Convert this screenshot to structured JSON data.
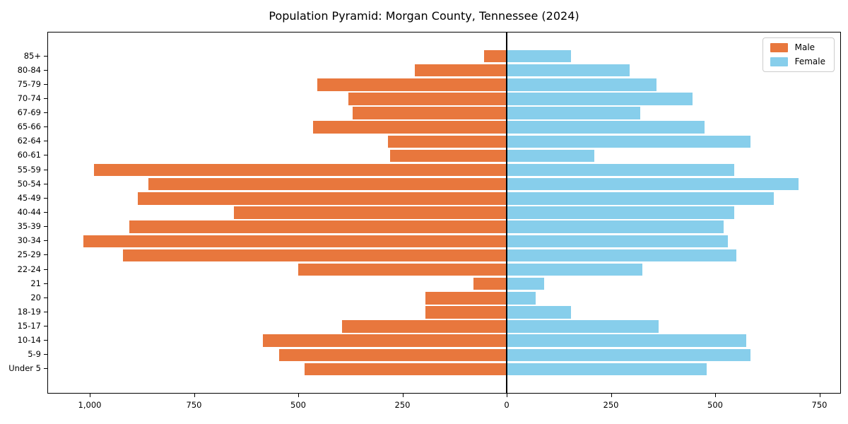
{
  "title": "Population Pyramid: Morgan County, Tennessee (2024)",
  "legend": {
    "male_label": "Male",
    "female_label": "Female"
  },
  "colors": {
    "male": "#e8773d",
    "female": "#87ceeb",
    "axis": "#000000",
    "zero_line": "#000000",
    "legend_border": "#cccccc",
    "background": "#ffffff"
  },
  "chart_data": {
    "type": "bar",
    "subtype": "population-pyramid",
    "title": "Population Pyramid: Morgan County, Tennessee (2024)",
    "xlabel": "",
    "ylabel": "",
    "grid": false,
    "legend_position": "upper right",
    "categories_top_to_bottom": [
      "85+",
      "80-84",
      "75-79",
      "70-74",
      "67-69",
      "65-66",
      "62-64",
      "60-61",
      "55-59",
      "50-54",
      "45-49",
      "40-44",
      "35-39",
      "30-34",
      "25-29",
      "22-24",
      "21",
      "20",
      "18-19",
      "15-17",
      "10-14",
      "5-9",
      "Under 5"
    ],
    "series": [
      {
        "name": "Male",
        "side": "left",
        "values": [
          55,
          220,
          455,
          380,
          370,
          465,
          285,
          280,
          990,
          860,
          885,
          655,
          905,
          1015,
          920,
          500,
          80,
          195,
          195,
          395,
          585,
          545,
          485
        ]
      },
      {
        "name": "Female",
        "side": "right",
        "values": [
          155,
          295,
          360,
          445,
          320,
          475,
          585,
          210,
          545,
          700,
          640,
          545,
          520,
          530,
          550,
          325,
          90,
          70,
          155,
          365,
          575,
          585,
          480
        ]
      }
    ],
    "x_axis": {
      "tick_values": [
        -1000,
        -750,
        -500,
        -250,
        0,
        250,
        500,
        750
      ],
      "tick_labels": [
        "1,000",
        "750",
        "500",
        "250",
        "0",
        "250",
        "500",
        "750"
      ],
      "xlim": [
        -1100,
        800
      ],
      "note": "magnitudes shown as absolute values on both sides of zero"
    },
    "zero_line": true
  }
}
